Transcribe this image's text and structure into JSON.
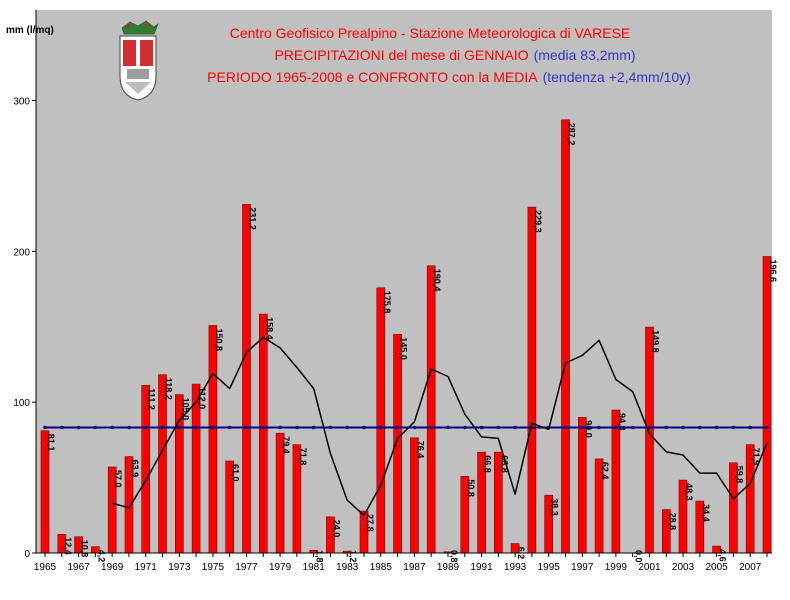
{
  "chart_data": {
    "type": "bar",
    "title_lines": [
      "Centro Geofisico Prealpino - Stazione Meteorologica di VARESE",
      "PRECIPITAZIONI del mese di GENNAIO",
      "(media 83,2mm)",
      "PERIODO 1965-2008 e CONFRONTO con la MEDIA",
      "(tendenza +2,4mm/10y)"
    ],
    "ylabel": "mm (l/mq)",
    "ylim": [
      0,
      360
    ],
    "yticks": [
      0,
      100,
      200,
      300
    ],
    "x_tick_labels": [
      "1965",
      "1967",
      "1969",
      "1971",
      "1973",
      "1975",
      "1977",
      "1979",
      "1981",
      "1983",
      "1985",
      "1987",
      "1989",
      "1991",
      "1993",
      "1995",
      "1997",
      "1999",
      "2001",
      "2003",
      "2005",
      "2007"
    ],
    "categories": [
      "1965",
      "1966",
      "1967",
      "1968",
      "1969",
      "1970",
      "1971",
      "1972",
      "1973",
      "1974",
      "1975",
      "1976",
      "1977",
      "1978",
      "1979",
      "1980",
      "1981",
      "1982",
      "1983",
      "1984",
      "1985",
      "1986",
      "1987",
      "1988",
      "1989",
      "1990",
      "1991",
      "1992",
      "1993",
      "1994",
      "1995",
      "1996",
      "1997",
      "1998",
      "1999",
      "2000",
      "2001",
      "2002",
      "2003",
      "2004",
      "2005",
      "2006",
      "2007",
      "2008"
    ],
    "series": [
      {
        "values": [
          81.1,
          12.4,
          10.8,
          4.2,
          57.0,
          63.9,
          111.2,
          118.2,
          105.0,
          112.0,
          150.8,
          61.0,
          231.2,
          158.4,
          79.4,
          71.8,
          1.8,
          24.0,
          1.2,
          27.8,
          175.8,
          145.0,
          76.4,
          190.4,
          0.8,
          50.8,
          66.8,
          66.8,
          6.2,
          229.3,
          38.3,
          287.2,
          90.0,
          62.4,
          94.8,
          0.0,
          149.8,
          28.8,
          48.3,
          34.4,
          4.6,
          59.8,
          71.9,
          196.6
        ],
        "labels": [
          "81,1",
          "12,4",
          "10,8",
          "4,2",
          "57,0",
          "63,9",
          "111,2",
          "118,2",
          "105,0",
          "112,0",
          "150,8",
          "61,0",
          "231,2",
          "158,4",
          "79,4",
          "71,8",
          "1,8",
          "24,0",
          "1,2",
          "27,8",
          "175,8",
          "145,0",
          "76,4",
          "190,4",
          "0,8",
          "50,8",
          "66,8",
          "66,8",
          "6,2",
          "229,3",
          "38,3",
          "287,2",
          "90,0",
          "62,4",
          "94,8",
          "0,0",
          "149,8",
          "28,8",
          "48,3",
          "34,4",
          "4,6",
          "59,8",
          "71,9",
          "196,6"
        ]
      },
      {
        "type": "line",
        "values": [
          null,
          null,
          null,
          null,
          33,
          30,
          48,
          68,
          88,
          100,
          119,
          109,
          133,
          143,
          136,
          123,
          109,
          66,
          35,
          25,
          45,
          76,
          87,
          122,
          117,
          92,
          77,
          76,
          39,
          86,
          82,
          126,
          131,
          141,
          115,
          107,
          79,
          67,
          65,
          53,
          53,
          36,
          46,
          73
        ]
      },
      {
        "type": "line",
        "values": [
          83.2,
          83.2,
          83.2,
          83.2,
          83.2,
          83.2,
          83.2,
          83.2,
          83.2,
          83.2,
          83.2,
          83.2,
          83.2,
          83.2,
          83.2,
          83.2,
          83.2,
          83.2,
          83.2,
          83.2,
          83.2,
          83.2,
          83.2,
          83.2,
          83.2,
          83.2,
          83.2,
          83.2,
          83.2,
          83.2,
          83.2,
          83.2,
          83.2,
          83.2,
          83.2,
          83.2,
          83.2,
          83.2,
          83.2,
          83.2,
          83.2,
          83.2,
          83.2,
          83.2
        ]
      }
    ],
    "grid": false,
    "colors": {
      "bar": "#ff0000",
      "bar_label": "#000000",
      "plot_bg": "#c0c0c0",
      "moving_avg": "#000000",
      "mean_line": "#000080",
      "title_red": "#ff0000",
      "title_blue": "#3333cc"
    }
  },
  "logo": {
    "icon": "varese-coat-of-arms-icon"
  }
}
